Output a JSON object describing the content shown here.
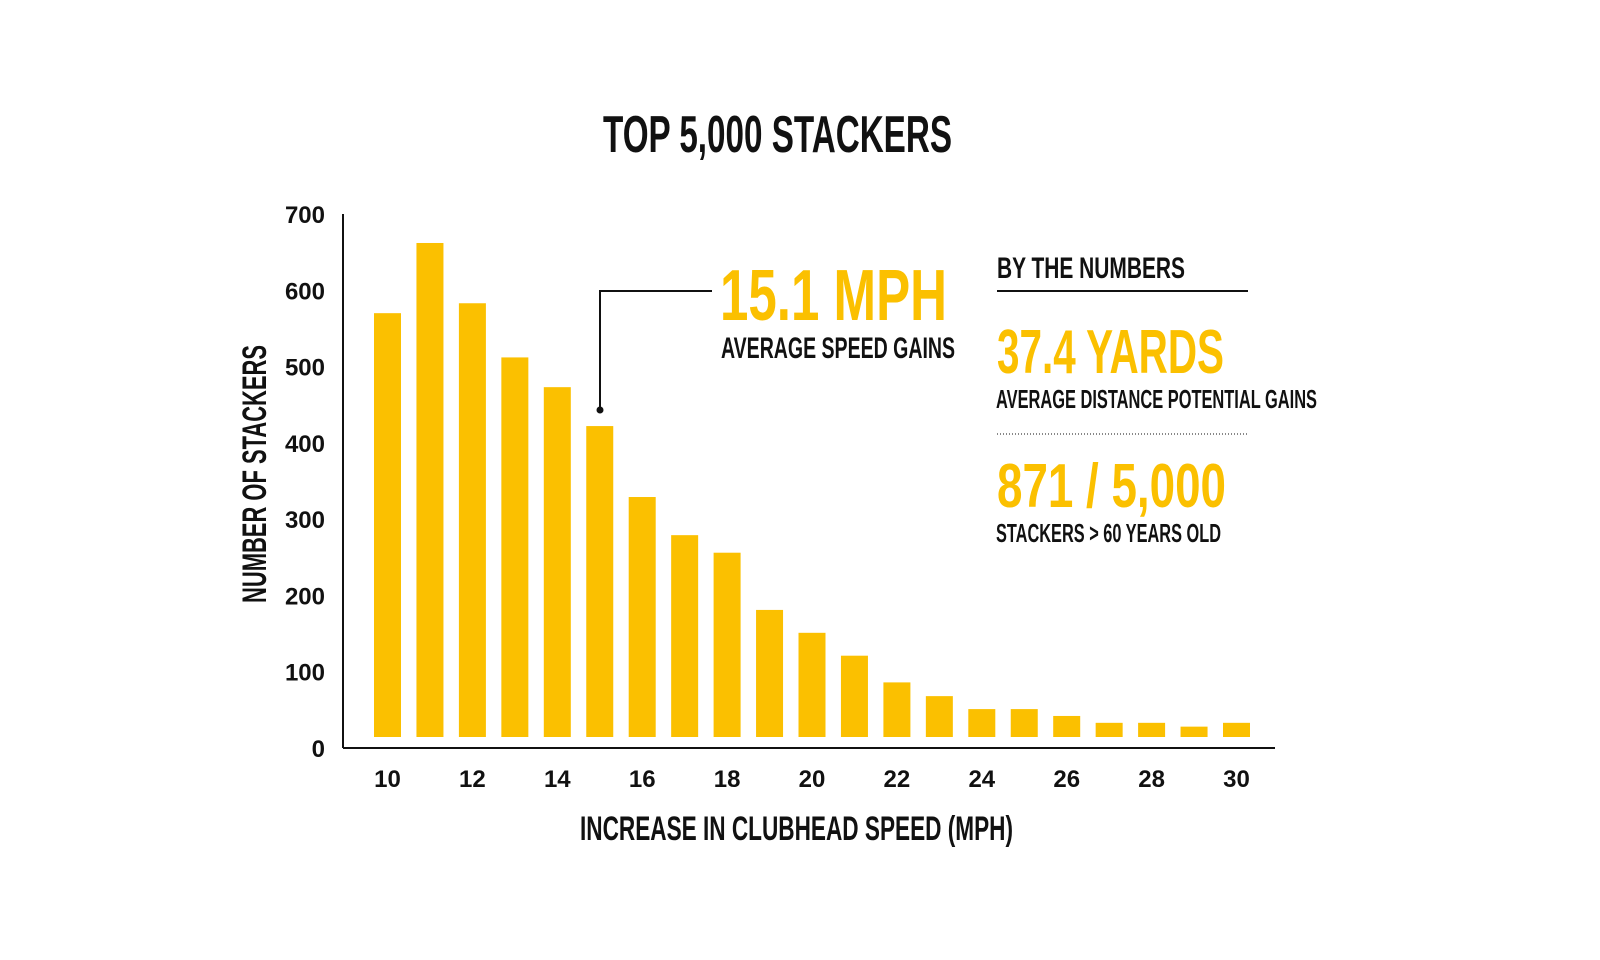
{
  "chart_data": {
    "type": "bar",
    "title": "TOP 5,000 STACKERS",
    "xlabel": "INCREASE IN CLUBHEAD SPEED (MPH)",
    "ylabel": "NUMBER OF STACKERS",
    "ylim": [
      0,
      700
    ],
    "yticks": [
      "0",
      "100",
      "200",
      "300",
      "400",
      "500",
      "600",
      "700"
    ],
    "xticks": [
      "10",
      "12",
      "14",
      "16",
      "18",
      "20",
      "22",
      "24",
      "26",
      "28",
      "30"
    ],
    "x": [
      10,
      11,
      12,
      13,
      14,
      15,
      16,
      17,
      18,
      19,
      20,
      21,
      22,
      23,
      24,
      25,
      26,
      27,
      28,
      29,
      30
    ],
    "values": [
      570,
      662,
      583,
      512,
      473,
      422,
      329,
      279,
      256,
      181,
      151,
      121,
      86,
      68,
      51,
      51,
      42,
      33,
      33,
      28,
      33
    ],
    "bar_color": "#fbc000",
    "grid": false,
    "annotation": {
      "x": 15.1,
      "value": "15.1 MPH",
      "label": "AVERAGE SPEED GAINS"
    }
  },
  "sidebar": {
    "heading": "BY THE NUMBERS",
    "stats": [
      {
        "value": "37.4 YARDS",
        "label": "AVERAGE DISTANCE POTENTIAL GAINS"
      },
      {
        "value": "871 / 5,000",
        "label": "STACKERS > 60 YEARS OLD"
      }
    ]
  }
}
